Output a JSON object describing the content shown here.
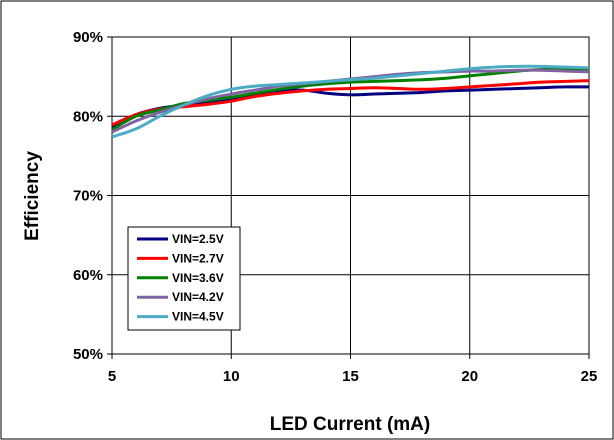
{
  "chart_data": {
    "type": "line",
    "title": "",
    "xlabel": "LED Current (mA)",
    "ylabel": "Efficiency",
    "xlim": [
      5,
      25
    ],
    "ylim": [
      50,
      90
    ],
    "x_ticks": [
      5,
      10,
      15,
      20,
      25
    ],
    "y_ticks": [
      50,
      60,
      70,
      80,
      90
    ],
    "y_tick_labels": [
      "50%",
      "60%",
      "70%",
      "80%",
      "90%"
    ],
    "grid": true,
    "legend_position": "bottom-left",
    "series": [
      {
        "name": "VIN=2.5V",
        "color": "#000080",
        "points": [
          [
            5,
            78.6
          ],
          [
            6,
            80.2
          ],
          [
            7,
            81.0
          ],
          [
            8,
            81.4
          ],
          [
            9,
            81.7
          ],
          [
            10,
            82.1
          ],
          [
            11,
            82.7
          ],
          [
            12,
            83.2
          ],
          [
            13,
            83.3
          ],
          [
            14,
            82.9
          ],
          [
            15,
            82.7
          ],
          [
            16,
            82.8
          ],
          [
            17,
            82.9
          ],
          [
            18,
            83.0
          ],
          [
            19,
            83.2
          ],
          [
            20,
            83.3
          ],
          [
            21,
            83.4
          ],
          [
            22,
            83.5
          ],
          [
            23,
            83.6
          ],
          [
            24,
            83.7
          ],
          [
            25,
            83.7
          ]
        ]
      },
      {
        "name": "VIN=2.7V",
        "color": "#ff0000",
        "points": [
          [
            5,
            78.9
          ],
          [
            6,
            80.2
          ],
          [
            7,
            80.9
          ],
          [
            8,
            81.2
          ],
          [
            9,
            81.5
          ],
          [
            10,
            81.9
          ],
          [
            11,
            82.5
          ],
          [
            12,
            82.9
          ],
          [
            13,
            83.2
          ],
          [
            14,
            83.4
          ],
          [
            15,
            83.5
          ],
          [
            16,
            83.6
          ],
          [
            17,
            83.5
          ],
          [
            18,
            83.4
          ],
          [
            19,
            83.5
          ],
          [
            20,
            83.7
          ],
          [
            21,
            83.9
          ],
          [
            22,
            84.1
          ],
          [
            23,
            84.3
          ],
          [
            24,
            84.4
          ],
          [
            25,
            84.5
          ]
        ]
      },
      {
        "name": "VIN=3.6V",
        "color": "#008000",
        "points": [
          [
            5,
            78.3
          ],
          [
            6,
            80.0
          ],
          [
            7,
            80.8
          ],
          [
            8,
            81.6
          ],
          [
            9,
            82.0
          ],
          [
            10,
            82.4
          ],
          [
            11,
            82.9
          ],
          [
            12,
            83.4
          ],
          [
            13,
            83.8
          ],
          [
            14,
            84.1
          ],
          [
            15,
            84.3
          ],
          [
            16,
            84.4
          ],
          [
            17,
            84.5
          ],
          [
            18,
            84.6
          ],
          [
            19,
            84.8
          ],
          [
            20,
            85.1
          ],
          [
            21,
            85.4
          ],
          [
            22,
            85.7
          ],
          [
            23,
            85.9
          ],
          [
            24,
            85.9
          ],
          [
            25,
            85.9
          ]
        ]
      },
      {
        "name": "VIN=4.2V",
        "color": "#8064a2",
        "points": [
          [
            5,
            78.0
          ],
          [
            6,
            79.4
          ],
          [
            7,
            80.5
          ],
          [
            8,
            81.4
          ],
          [
            9,
            82.2
          ],
          [
            10,
            82.8
          ],
          [
            11,
            83.3
          ],
          [
            12,
            83.8
          ],
          [
            13,
            84.1
          ],
          [
            14,
            84.4
          ],
          [
            15,
            84.7
          ],
          [
            16,
            85.0
          ],
          [
            17,
            85.3
          ],
          [
            18,
            85.5
          ],
          [
            19,
            85.6
          ],
          [
            20,
            85.7
          ],
          [
            21,
            85.7
          ],
          [
            22,
            85.8
          ],
          [
            23,
            85.8
          ],
          [
            24,
            85.7
          ],
          [
            25,
            85.6
          ]
        ]
      },
      {
        "name": "VIN=4.5V",
        "color": "#4bacc6",
        "points": [
          [
            5,
            77.4
          ],
          [
            6,
            78.4
          ],
          [
            7,
            80.0
          ],
          [
            8,
            81.4
          ],
          [
            9,
            82.6
          ],
          [
            10,
            83.4
          ],
          [
            11,
            83.8
          ],
          [
            12,
            84.0
          ],
          [
            13,
            84.2
          ],
          [
            14,
            84.4
          ],
          [
            15,
            84.6
          ],
          [
            16,
            84.8
          ],
          [
            17,
            85.1
          ],
          [
            18,
            85.4
          ],
          [
            19,
            85.7
          ],
          [
            20,
            86.0
          ],
          [
            21,
            86.2
          ],
          [
            22,
            86.3
          ],
          [
            23,
            86.3
          ],
          [
            24,
            86.2
          ],
          [
            25,
            86.1
          ]
        ]
      }
    ]
  }
}
